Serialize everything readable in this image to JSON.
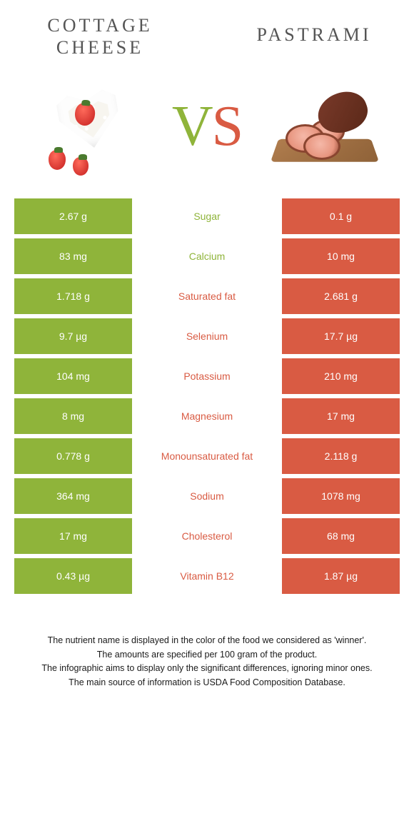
{
  "colors": {
    "green": "#8fb43a",
    "red": "#d95b43",
    "background": "#ffffff",
    "title_text": "#555555",
    "footnote_text": "#1a1a1a"
  },
  "typography": {
    "title_fontsize": 26,
    "title_letterspacing": 4,
    "vs_fontsize": 80,
    "cell_fontsize": 14,
    "footnote_fontsize": 12.5
  },
  "left": {
    "title": "COTTAGE CHEESE"
  },
  "right": {
    "title": "PASTRAMI"
  },
  "vs": {
    "v": "V",
    "s": "S"
  },
  "rows": [
    {
      "left": "2.67 g",
      "label": "Sugar",
      "right": "0.1 g",
      "winner": "left"
    },
    {
      "left": "83 mg",
      "label": "Calcium",
      "right": "10 mg",
      "winner": "left"
    },
    {
      "left": "1.718 g",
      "label": "Saturated fat",
      "right": "2.681 g",
      "winner": "right"
    },
    {
      "left": "9.7 µg",
      "label": "Selenium",
      "right": "17.7 µg",
      "winner": "right"
    },
    {
      "left": "104 mg",
      "label": "Potassium",
      "right": "210 mg",
      "winner": "right"
    },
    {
      "left": "8 mg",
      "label": "Magnesium",
      "right": "17 mg",
      "winner": "right"
    },
    {
      "left": "0.778 g",
      "label": "Monounsaturated fat",
      "right": "2.118 g",
      "winner": "right"
    },
    {
      "left": "364 mg",
      "label": "Sodium",
      "right": "1078 mg",
      "winner": "right"
    },
    {
      "left": "17 mg",
      "label": "Cholesterol",
      "right": "68 mg",
      "winner": "right"
    },
    {
      "left": "0.43 µg",
      "label": "Vitamin B12",
      "right": "1.87 µg",
      "winner": "right"
    }
  ],
  "footnote": {
    "l1": "The nutrient name is displayed in the color of the food we considered as 'winner'.",
    "l2": "The amounts are specified per 100 gram of the product.",
    "l3": "The infographic aims to display only the significant differences, ignoring minor ones.",
    "l4": "The main source of information is USDA Food Composition Database."
  }
}
